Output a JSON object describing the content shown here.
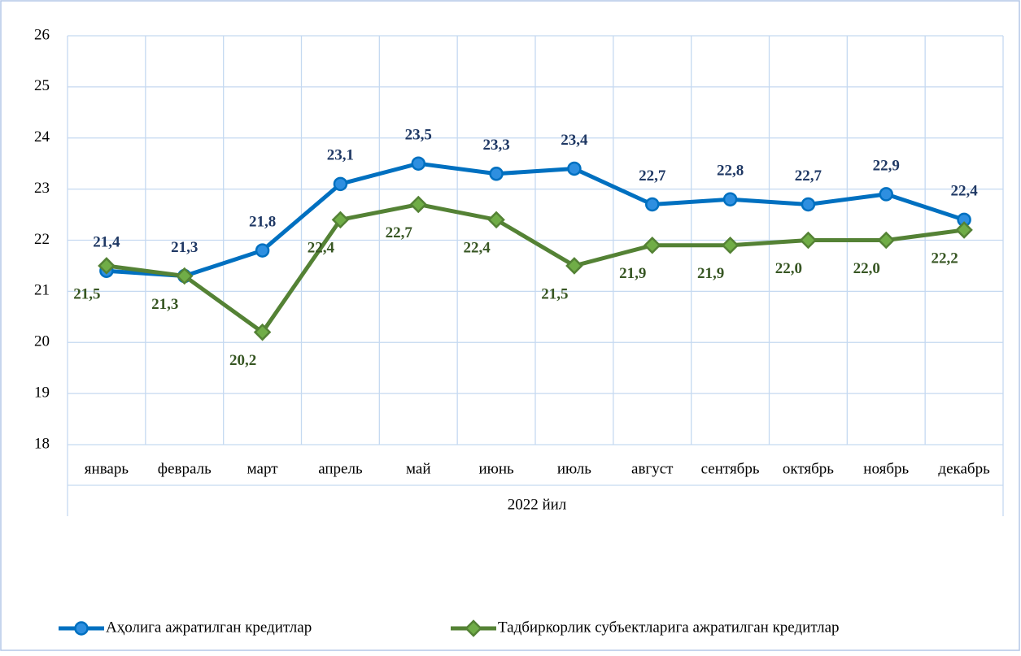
{
  "chart_data": {
    "type": "line",
    "xlabel": "2022 йил",
    "categories": [
      "январь",
      "февраль",
      "март",
      "апрель",
      "май",
      "июнь",
      "июль",
      "август",
      "сентябрь",
      "октябрь",
      "ноябрь",
      "декабрь"
    ],
    "series": [
      {
        "name": "Аҳолига ажратилган кредитлар",
        "color": "#0070c0",
        "marker": "circle",
        "values": [
          21.4,
          21.3,
          21.8,
          23.1,
          23.5,
          23.3,
          23.4,
          22.7,
          22.8,
          22.7,
          22.9,
          22.4
        ],
        "value_labels": [
          "21,4",
          "21,3",
          "21,8",
          "23,1",
          "23,5",
          "23,3",
          "23,4",
          "22,7",
          "22,8",
          "22,7",
          "22,9",
          "22,4"
        ]
      },
      {
        "name": "Тадбиркорлик субъектларига ажратилган кредитлар",
        "color": "#548235",
        "marker": "diamond",
        "values": [
          21.5,
          21.3,
          20.2,
          22.4,
          22.7,
          22.4,
          21.5,
          21.9,
          21.9,
          22.0,
          22.0,
          22.2
        ],
        "value_labels": [
          "21,5",
          "21,3",
          "20,2",
          "22,4",
          "22,7",
          "22,4",
          "21,5",
          "21,9",
          "21,9",
          "22,0",
          "22,0",
          "22,2"
        ]
      }
    ],
    "ylim": [
      18,
      26
    ],
    "yticks": [
      18,
      19,
      20,
      21,
      22,
      23,
      24,
      25,
      26
    ],
    "grid": true,
    "legend": "bottom"
  }
}
